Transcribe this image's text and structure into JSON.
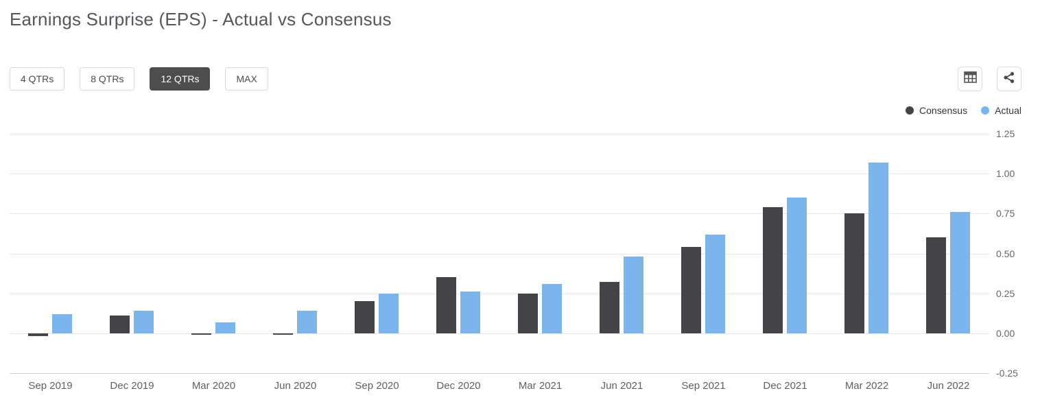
{
  "header": {
    "title": "Earnings Surprise (EPS) - Actual vs Consensus"
  },
  "toolbar": {
    "range_buttons": [
      {
        "label": "4 QTRs",
        "selected": false
      },
      {
        "label": "8 QTRs",
        "selected": false
      },
      {
        "label": "12 QTRs",
        "selected": true
      },
      {
        "label": "MAX",
        "selected": false
      }
    ],
    "icons": [
      {
        "name": "table-icon",
        "color": "#555555"
      },
      {
        "name": "share-icon",
        "color": "#4a4a4a"
      }
    ]
  },
  "legend": {
    "items": [
      {
        "label": "Consensus",
        "color": "#434348"
      },
      {
        "label": "Actual",
        "color": "#7cb5ec"
      }
    ]
  },
  "chart_data": {
    "type": "bar",
    "title": "Earnings Surprise (EPS) - Actual vs Consensus",
    "categories": [
      "Sep 2019",
      "Dec 2019",
      "Mar 2020",
      "Jun 2020",
      "Sep 2020",
      "Dec 2020",
      "Mar 2021",
      "Jun 2021",
      "Sep 2021",
      "Dec 2021",
      "Mar 2022",
      "Jun 2022"
    ],
    "series": [
      {
        "name": "Consensus",
        "color": "#434348",
        "values": [
          -0.02,
          0.11,
          -0.01,
          -0.01,
          0.2,
          0.35,
          0.25,
          0.32,
          0.54,
          0.79,
          0.75,
          0.6
        ]
      },
      {
        "name": "Actual",
        "color": "#7cb5ec",
        "values": [
          0.12,
          0.14,
          0.07,
          0.14,
          0.25,
          0.26,
          0.31,
          0.48,
          0.62,
          0.85,
          1.07,
          0.76
        ]
      }
    ],
    "xlabel": "",
    "ylabel": "",
    "ylim": [
      -0.25,
      1.25
    ],
    "yticks": [
      -0.25,
      0.0,
      0.25,
      0.5,
      0.75,
      1.0,
      1.25
    ],
    "ytick_labels": [
      "-0.25",
      "0.00",
      "0.25",
      "0.50",
      "0.75",
      "1.00",
      "1.25"
    ],
    "grid": true,
    "legend_position": "top-right"
  }
}
